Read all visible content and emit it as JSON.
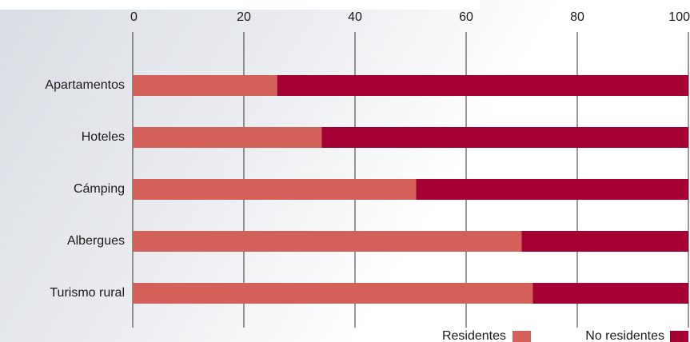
{
  "chart_data": {
    "type": "stacked_barh",
    "categories": [
      "Apartamentos",
      "Hoteles",
      "Cámping",
      "Albergues",
      "Turismo rural"
    ],
    "series": [
      {
        "name": "Residentes",
        "color": "#d4605a",
        "values": [
          26,
          34,
          51,
          70,
          72
        ]
      },
      {
        "name": "No residentes",
        "color": "#a50034",
        "values": [
          74,
          66,
          49,
          30,
          28
        ]
      }
    ],
    "xlim": [
      0,
      100
    ],
    "xticks": [
      0,
      20,
      40,
      60,
      80,
      100
    ],
    "grid": true,
    "legend": "bottom-right"
  }
}
